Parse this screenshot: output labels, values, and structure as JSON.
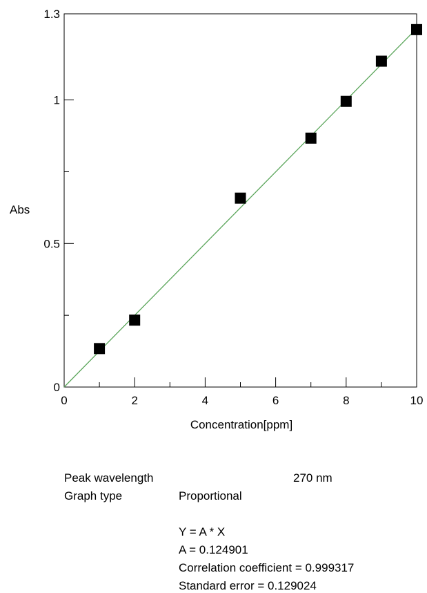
{
  "chart_data": {
    "type": "scatter",
    "xlabel": "Concentration[ppm]",
    "ylabel": "Abs",
    "xlim": [
      0,
      10
    ],
    "ylim": [
      0,
      1.3
    ],
    "x_ticks": [
      0,
      2,
      4,
      6,
      8,
      10
    ],
    "x_tick_labels": [
      "0",
      "2",
      "4",
      "6",
      "8",
      "10"
    ],
    "y_ticks": [
      0,
      0.5,
      1,
      1.3
    ],
    "y_tick_labels": [
      "0",
      "0.5",
      "1",
      "1.3"
    ],
    "grid": false,
    "series": [
      {
        "x": [
          1,
          2,
          5,
          7,
          8,
          9,
          10
        ],
        "y": [
          0.134,
          0.233,
          0.658,
          0.867,
          0.995,
          1.135,
          1.245
        ],
        "color": "#000000"
      }
    ],
    "fit_line": {
      "slope": 0.124901,
      "intercept": 0,
      "color": "#5aa55a"
    }
  },
  "info": {
    "peak_wavelength_label": "Peak wavelength",
    "peak_wavelength_value": "270 nm",
    "graph_type_label": "Graph type",
    "graph_type_value": "Proportional",
    "equation": "Y = A * X",
    "coef_a": "A = 0.124901",
    "correlation": "Correlation coefficient = 0.999317",
    "std_error": "Standard error = 0.129024"
  }
}
